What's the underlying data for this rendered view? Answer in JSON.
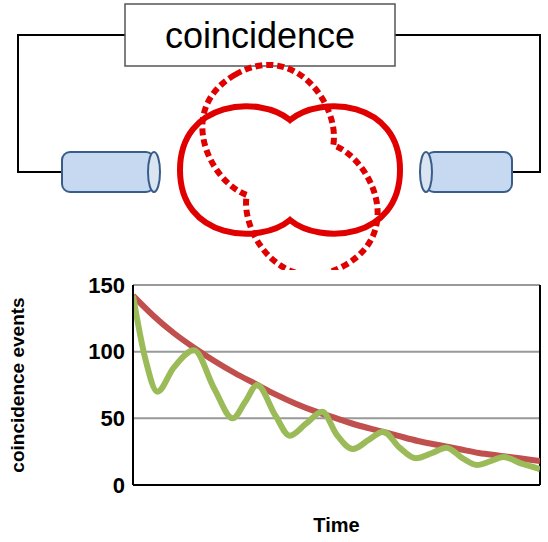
{
  "diagram": {
    "box_label": "coincidence"
  },
  "chart_data": {
    "type": "line",
    "x_label": "Time",
    "y_label": "coincidence events",
    "xlim": [
      0,
      20
    ],
    "ylim": [
      0,
      150
    ],
    "yticks": [
      0,
      50,
      100,
      150
    ],
    "grid": true,
    "tick_labels": "y",
    "series": [
      {
        "color": "#c0504d",
        "x": [
          0,
          1,
          2,
          3,
          4,
          5,
          6,
          7,
          8,
          9,
          10,
          11,
          12,
          13,
          14,
          15,
          16,
          17,
          18,
          19,
          20
        ],
        "values": [
          142,
          127,
          114,
          103,
          93,
          84,
          76,
          68,
          61,
          55,
          50,
          45,
          41,
          37,
          33,
          30,
          27,
          24,
          22,
          20,
          18
        ]
      },
      {
        "color": "#9bbb59",
        "x": [
          0,
          0.6,
          1.2,
          2,
          3,
          4,
          4.9,
          5.5,
          6.1,
          7,
          7.7,
          8.5,
          9.3,
          10,
          10.8,
          11.6,
          12.3,
          13.1,
          13.9,
          14.7,
          15.4,
          16.2,
          16.9,
          17.6,
          18.2,
          19.1,
          20
        ],
        "values": [
          142,
          95,
          70,
          88,
          101,
          72,
          50,
          62,
          75,
          52,
          37,
          46,
          55,
          38,
          27,
          34,
          40,
          28,
          20,
          24,
          28,
          20,
          15,
          18,
          21,
          16,
          12
        ]
      }
    ]
  }
}
